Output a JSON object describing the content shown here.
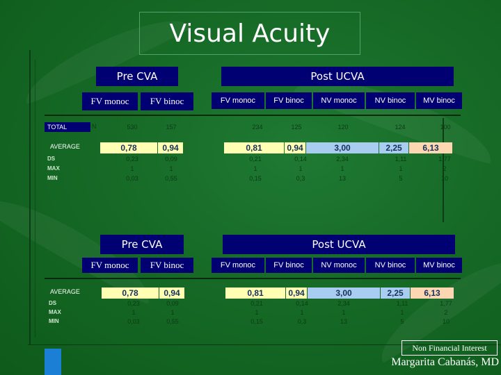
{
  "title": "Visual Acuity",
  "headers": {
    "pre": "Pre CVA",
    "post": "Post UCVA",
    "columns": [
      "FV monoc",
      "FV binoc",
      "FV monoc",
      "FV binoc",
      "NV monoc",
      "NV binoc",
      "MV binoc"
    ]
  },
  "table1": {
    "total_label": "TOTAL",
    "n_label": "N",
    "n_values": [
      "530",
      "157",
      "234",
      "125",
      "120",
      "124",
      "100"
    ],
    "average_label": "AVERAGE",
    "averages": [
      "0,78",
      "0,94",
      "0,81",
      "0,94",
      "3,00",
      "2,25",
      "6,13"
    ],
    "stat_labels": [
      "DS",
      "MAX",
      "MIN"
    ],
    "stats": [
      [
        "0,23",
        "0,09",
        "0,21",
        "0,14",
        "2,34",
        "1,11",
        "1,77"
      ],
      [
        "1",
        "1",
        "1",
        "1",
        "1",
        "1",
        "2"
      ],
      [
        "0,03",
        "0,55",
        "0,15",
        "0,3",
        "13",
        "5",
        "10"
      ]
    ]
  },
  "table2": {
    "average_label": "AVERAGE",
    "averages": [
      "0,78",
      "0,94",
      "0,81",
      "0,94",
      "3,00",
      "2,25",
      "6,13"
    ],
    "stat_labels": [
      "DS",
      "MAX",
      "MIN"
    ],
    "stats": [
      [
        "0,23",
        "0,09",
        "0,21",
        "0,14",
        "2,34",
        "1,11",
        "1,77"
      ],
      [
        "1",
        "1",
        "1",
        "1",
        "1",
        "1",
        "2"
      ],
      [
        "0,03",
        "0,55",
        "0,15",
        "0,3",
        "13",
        "5",
        "10"
      ]
    ]
  },
  "footer": {
    "disclosure": "Non Financial Interest",
    "author": "Margarita Cabanás, MD"
  },
  "colors": {
    "background": "#166a26",
    "header_navy": "#000073",
    "avg_yellow": "#ffffb3",
    "avg_blue": "#a9cdf0",
    "avg_peach": "#fcd7b1"
  }
}
